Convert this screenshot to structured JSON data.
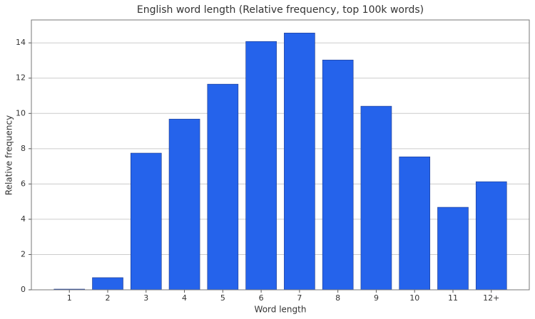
{
  "chart_data": {
    "type": "bar",
    "title": "English word length (Relative frequency, top 100k words)",
    "x_label": "Word length",
    "y_label": "Relative frequency",
    "categories": [
      "1",
      "2",
      "3",
      "4",
      "5",
      "6",
      "7",
      "8",
      "9",
      "10",
      "11",
      "12+"
    ],
    "values": [
      0.04,
      0.69,
      7.75,
      9.68,
      11.66,
      14.08,
      14.56,
      13.03,
      10.41,
      7.54,
      4.68,
      6.13
    ],
    "color": "#2563eb",
    "ylim": [
      0,
      15.3
    ],
    "yticks": [
      0,
      2,
      4,
      6,
      8,
      10,
      12,
      14
    ],
    "grid": true
  }
}
